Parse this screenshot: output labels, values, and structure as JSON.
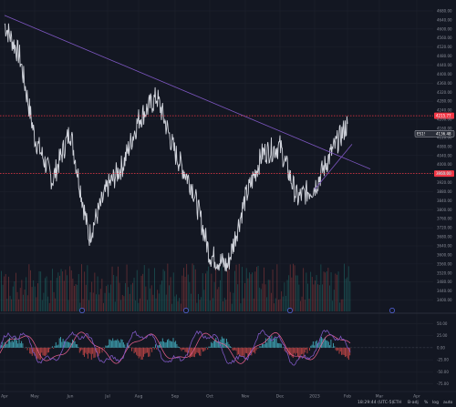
{
  "chart_data": {
    "type": "line",
    "title": "",
    "xlabel": "",
    "ylabel": "",
    "x_tick_labels": [
      "Apr",
      "May",
      "Jun",
      "Jul",
      "Aug",
      "Sep",
      "Oct",
      "Nov",
      "Dec",
      "2023",
      "Feb",
      "Mar",
      "Apr"
    ],
    "ylim": [
      3350,
      4720
    ],
    "y_ticks": [
      3400,
      3440,
      3480,
      3520,
      3560,
      3600,
      3640,
      3680,
      3720,
      3760,
      3800,
      3840,
      3880,
      3920,
      3960,
      4000,
      4040,
      4080,
      4120,
      4160,
      4200,
      4240,
      4280,
      4320,
      4360,
      4400,
      4440,
      4480,
      4520,
      4560,
      4600,
      4640,
      4680
    ],
    "series": [
      {
        "values_by_month": [
          [
            "Apr",
            4620
          ],
          [
            "Apr-mid",
            4480
          ],
          [
            "May",
            4120
          ],
          [
            "May-mid",
            3930
          ],
          [
            "Jun",
            4150
          ],
          [
            "Jun-mid",
            3680
          ],
          [
            "Jul",
            3900
          ],
          [
            "Jul-mid",
            4000
          ],
          [
            "Aug",
            4200
          ],
          [
            "Aug-mid",
            4300
          ],
          [
            "Sep",
            4050
          ],
          [
            "Sep-mid",
            3900
          ],
          [
            "Oct",
            3600
          ],
          [
            "Oct-mid",
            3550
          ],
          [
            "Nov",
            3850
          ],
          [
            "Nov-mid",
            4050
          ],
          [
            "Dec",
            4080
          ],
          [
            "Dec-mid",
            3850
          ],
          [
            "2023",
            3900
          ],
          [
            "2023-mid",
            4050
          ],
          [
            "Feb",
            4180
          ]
        ]
      }
    ],
    "horizontal_levels": [
      {
        "value": 4215.77,
        "label": "4215.77",
        "color": "#f23645",
        "style": "dotted"
      },
      {
        "value": 3960.0,
        "label": "3960.00",
        "color": "#f23645",
        "style": "dotted"
      }
    ],
    "last_price": {
      "value": 4136.48,
      "tag": "ES1!",
      "label": "4136.48"
    },
    "trendlines": [
      {
        "from": [
          "Apr",
          4660
        ],
        "to": [
          "Feb",
          3980
        ],
        "color": "#7e57c2"
      },
      {
        "from": [
          "2023",
          3890
        ],
        "to": [
          "Feb",
          4090
        ],
        "color": "#7e57c2"
      }
    ],
    "oscillator": {
      "ticks": [
        50,
        25,
        0,
        -25,
        -50,
        -75
      ],
      "tick_labels": [
        "50.00",
        "25.00",
        "0.00",
        "-25.00",
        "-50.00",
        "-75.00"
      ],
      "range": [
        -85,
        60
      ]
    },
    "volume": {
      "present": true
    }
  },
  "status_bar": {
    "time": "18:29:44 (UTC-5)",
    "session": "ETH",
    "adj": "B-adj",
    "percent": "%",
    "log": "log",
    "auto": "auto"
  },
  "colors": {
    "background": "#131722",
    "price_line": "#d1d4dc",
    "trendline": "#7e57c2",
    "level": "#f23645",
    "volume_up": "#26a69a",
    "volume_down": "#ef5350",
    "osc_main": "#7e57c2",
    "osc_signal": "#f06292",
    "osc_hist_pos": "#4dd0e1",
    "osc_hist_neg": "#ef5350"
  }
}
